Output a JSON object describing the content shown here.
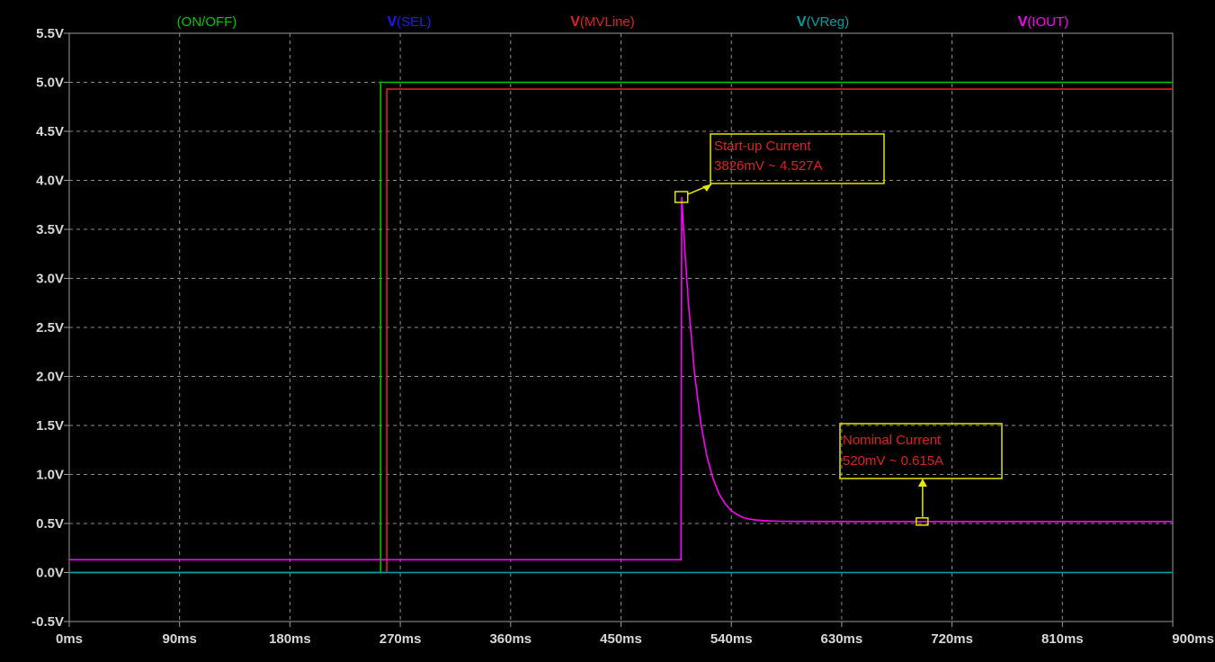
{
  "chart_data": {
    "type": "line",
    "x_ticks": [
      "0ms",
      "90ms",
      "180ms",
      "270ms",
      "360ms",
      "450ms",
      "540ms",
      "630ms",
      "720ms",
      "810ms",
      "900ms"
    ],
    "y_ticks": [
      "5.5V",
      "5.0V",
      "4.5V",
      "4.0V",
      "3.5V",
      "3.0V",
      "2.5V",
      "2.0V",
      "1.5V",
      "1.0V",
      "0.5V",
      "0.0V",
      "-0.5V"
    ],
    "xlim": [
      0,
      900
    ],
    "ylim": [
      -0.5,
      5.5
    ],
    "grid": true,
    "legend_position": "top",
    "series": [
      {
        "name": "(ON/OFF)",
        "prefix": "",
        "color": "#00c800",
        "x": [
          0,
          254,
          254,
          900
        ],
        "y": [
          0,
          0,
          5.0,
          5.0
        ]
      },
      {
        "name": "(SEL)",
        "prefix": "V",
        "color": "#1a1aff",
        "x": [
          0,
          900
        ],
        "y": [
          0,
          0
        ]
      },
      {
        "name": "(MVLine)",
        "prefix": "V",
        "color": "#e02020",
        "x": [
          0,
          259,
          259,
          900
        ],
        "y": [
          0,
          0,
          4.93,
          4.93
        ]
      },
      {
        "name": "(VReg)",
        "prefix": "V",
        "color": "#00a0a0",
        "x": [
          0,
          900
        ],
        "y": [
          0,
          0
        ]
      },
      {
        "name": "(IOUT)",
        "prefix": "V",
        "color": "#ff00ff",
        "x": [
          0,
          499,
          499.5,
          502,
          505,
          510,
          515,
          520,
          525,
          530,
          535,
          540,
          545,
          550,
          555,
          560,
          570,
          580,
          600,
          650,
          700,
          800,
          900
        ],
        "y": [
          0.13,
          0.13,
          3.83,
          3.3,
          2.75,
          2.03,
          1.53,
          1.19,
          0.96,
          0.8,
          0.7,
          0.63,
          0.59,
          0.56,
          0.545,
          0.535,
          0.527,
          0.523,
          0.521,
          0.52,
          0.52,
          0.52,
          0.52
        ]
      }
    ],
    "annotations": [
      {
        "lines": [
          "Start-up Current",
          "3826mV ~ 4.527A"
        ],
        "point": [
          500,
          3.83
        ]
      },
      {
        "lines": [
          "Nominal Current",
          "520mV ~ 0.615A"
        ],
        "point": [
          696,
          0.52
        ]
      }
    ]
  }
}
